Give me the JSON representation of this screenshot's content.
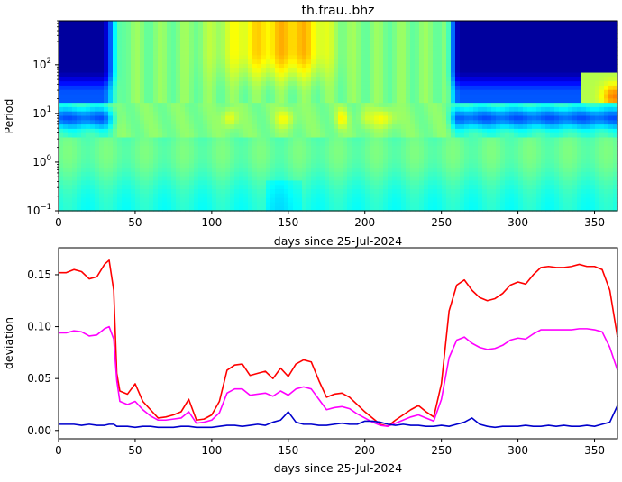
{
  "chart_data": [
    {
      "type": "heatmap",
      "title": "th.frau..bhz",
      "xlabel": "days since 25-Jul-2024",
      "ylabel": "Period",
      "xlim": [
        0,
        365
      ],
      "ylim": [
        0.1,
        800
      ],
      "yscale": "log",
      "x_ticks": [
        0,
        50,
        100,
        150,
        200,
        250,
        300,
        350
      ],
      "y_ticks": [
        {
          "value": 0.1,
          "base": "10",
          "exp": "−1"
        },
        {
          "value": 1,
          "base": "10",
          "exp": "0"
        },
        {
          "value": 10,
          "base": "10",
          "exp": "1"
        },
        {
          "value": 100,
          "base": "10",
          "exp": "2"
        }
      ],
      "colormap": "jet",
      "grid": false
    },
    {
      "type": "line",
      "xlabel": "days since 25-Jul-2024",
      "ylabel": "deviation",
      "xlim": [
        0,
        365
      ],
      "ylim": [
        -0.008,
        0.176
      ],
      "x_ticks": [
        0,
        50,
        100,
        150,
        200,
        250,
        300,
        350
      ],
      "y_ticks": [
        "0.00",
        "0.05",
        "0.10",
        "0.15"
      ],
      "grid": false,
      "x": [
        0,
        5,
        10,
        15,
        20,
        25,
        30,
        33,
        36,
        38,
        40,
        45,
        50,
        55,
        60,
        65,
        70,
        75,
        80,
        85,
        90,
        95,
        100,
        105,
        110,
        115,
        120,
        125,
        130,
        135,
        140,
        145,
        150,
        155,
        160,
        165,
        170,
        175,
        180,
        185,
        190,
        195,
        200,
        205,
        210,
        215,
        220,
        225,
        230,
        235,
        240,
        245,
        250,
        255,
        260,
        265,
        270,
        275,
        280,
        285,
        290,
        295,
        300,
        305,
        310,
        315,
        320,
        325,
        330,
        335,
        340,
        345,
        350,
        355,
        360,
        365
      ],
      "series": [
        {
          "color": "#ff0000",
          "values": [
            0.152,
            0.152,
            0.155,
            0.153,
            0.146,
            0.148,
            0.16,
            0.164,
            0.135,
            0.055,
            0.038,
            0.035,
            0.045,
            0.028,
            0.02,
            0.012,
            0.013,
            0.015,
            0.018,
            0.03,
            0.01,
            0.011,
            0.015,
            0.028,
            0.058,
            0.063,
            0.064,
            0.053,
            0.055,
            0.057,
            0.05,
            0.06,
            0.052,
            0.064,
            0.068,
            0.066,
            0.048,
            0.032,
            0.035,
            0.036,
            0.032,
            0.025,
            0.018,
            0.012,
            0.006,
            0.004,
            0.01,
            0.015,
            0.02,
            0.024,
            0.018,
            0.013,
            0.045,
            0.115,
            0.14,
            0.145,
            0.135,
            0.128,
            0.125,
            0.127,
            0.132,
            0.14,
            0.143,
            0.141,
            0.15,
            0.157,
            0.158,
            0.157,
            0.157,
            0.158,
            0.16,
            0.158,
            0.158,
            0.155,
            0.135,
            0.09
          ]
        },
        {
          "color": "#ff00ff",
          "values": [
            0.094,
            0.094,
            0.096,
            0.095,
            0.091,
            0.092,
            0.098,
            0.1,
            0.088,
            0.048,
            0.028,
            0.025,
            0.028,
            0.02,
            0.014,
            0.01,
            0.01,
            0.011,
            0.012,
            0.018,
            0.007,
            0.008,
            0.01,
            0.017,
            0.036,
            0.04,
            0.04,
            0.034,
            0.035,
            0.036,
            0.033,
            0.038,
            0.034,
            0.04,
            0.042,
            0.04,
            0.03,
            0.02,
            0.022,
            0.023,
            0.021,
            0.016,
            0.012,
            0.008,
            0.005,
            0.004,
            0.007,
            0.01,
            0.013,
            0.015,
            0.012,
            0.009,
            0.03,
            0.07,
            0.087,
            0.09,
            0.084,
            0.08,
            0.078,
            0.079,
            0.082,
            0.087,
            0.089,
            0.088,
            0.093,
            0.097,
            0.097,
            0.097,
            0.097,
            0.097,
            0.098,
            0.098,
            0.097,
            0.095,
            0.08,
            0.058
          ]
        },
        {
          "color": "#0000cc",
          "values": [
            0.006,
            0.006,
            0.006,
            0.005,
            0.006,
            0.005,
            0.005,
            0.006,
            0.006,
            0.004,
            0.004,
            0.004,
            0.003,
            0.004,
            0.004,
            0.003,
            0.003,
            0.003,
            0.004,
            0.004,
            0.003,
            0.003,
            0.003,
            0.004,
            0.005,
            0.005,
            0.004,
            0.005,
            0.006,
            0.005,
            0.008,
            0.01,
            0.018,
            0.008,
            0.006,
            0.006,
            0.005,
            0.005,
            0.006,
            0.007,
            0.006,
            0.006,
            0.009,
            0.009,
            0.008,
            0.006,
            0.005,
            0.006,
            0.005,
            0.005,
            0.004,
            0.004,
            0.005,
            0.004,
            0.006,
            0.008,
            0.012,
            0.006,
            0.004,
            0.003,
            0.004,
            0.004,
            0.004,
            0.005,
            0.004,
            0.004,
            0.005,
            0.004,
            0.005,
            0.004,
            0.004,
            0.005,
            0.004,
            0.006,
            0.008,
            0.024
          ]
        }
      ]
    }
  ]
}
